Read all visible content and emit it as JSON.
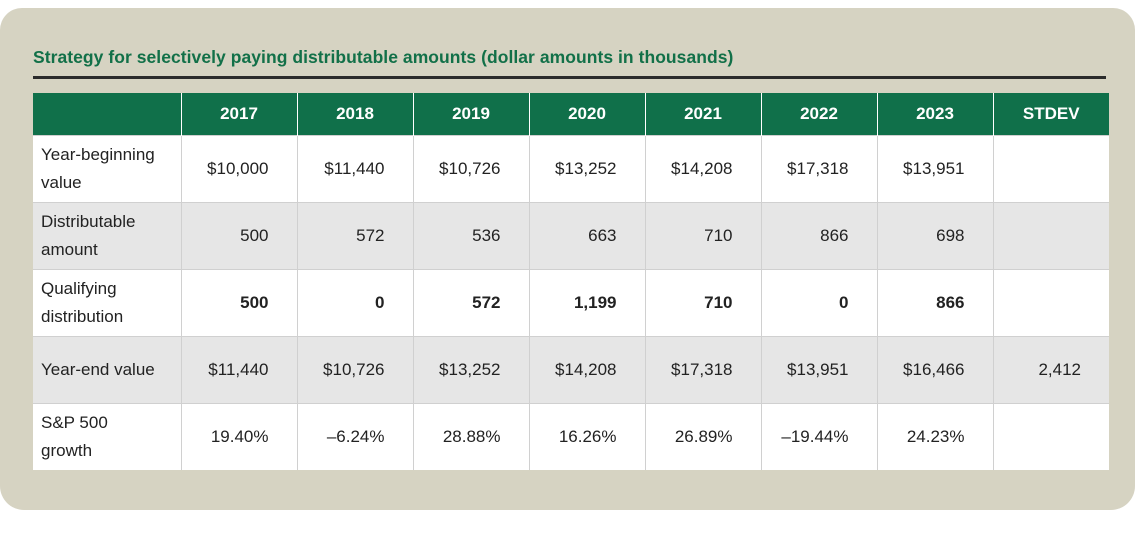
{
  "title": "Strategy for selectively paying distributable amounts (dollar amounts in thousands)",
  "table": {
    "headers": [
      "",
      "2017",
      "2018",
      "2019",
      "2020",
      "2021",
      "2022",
      "2023",
      "STDEV"
    ],
    "rows": [
      {
        "label_line1": "Year-beginning",
        "label_line2": "value",
        "values": [
          "$10,000",
          "$11,440",
          "$10,726",
          "$13,252",
          "$14,208",
          "$17,318",
          "$13,951",
          ""
        ]
      },
      {
        "label_line1": "Distributable",
        "label_line2": "amount",
        "values": [
          "500",
          "572",
          "536",
          "663",
          "710",
          "866",
          "698",
          ""
        ]
      },
      {
        "label_line1": "Qualifying",
        "label_line2": "distribution",
        "values": [
          "500",
          "0",
          "572",
          "1,199",
          "710",
          "0",
          "866",
          ""
        ]
      },
      {
        "label_line1": "Year-end value",
        "label_line2": "",
        "values": [
          "$11,440",
          "$10,726",
          "$13,252",
          "$14,208",
          "$17,318",
          "$13,951",
          "$16,466",
          "2,412"
        ]
      },
      {
        "label_line1": "S&P 500",
        "label_line2": "growth",
        "values": [
          "19.40%",
          "–6.24%",
          "28.88%",
          "16.26%",
          "26.89%",
          "–19.44%",
          "24.23%",
          ""
        ]
      }
    ]
  }
}
